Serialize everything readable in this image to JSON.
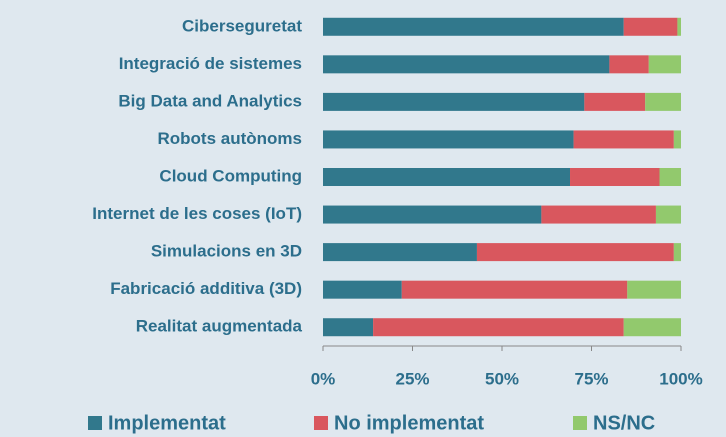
{
  "chart_data": {
    "type": "stacked-bar-horizontal",
    "categories": [
      "Ciberseguretat",
      "Integració de sistemes",
      "Big Data and Analytics",
      "Robots autònoms",
      "Cloud Computing",
      "Internet de les coses (IoT)",
      "Simulacions en 3D",
      "Fabricació additiva (3D)",
      "Realitat augmentada"
    ],
    "series": [
      {
        "name": "Implementat",
        "color": "#31788c",
        "values": [
          84,
          80,
          73,
          70,
          69,
          61,
          43,
          22,
          14
        ]
      },
      {
        "name": "No implementat",
        "color": "#d9575e",
        "values": [
          15,
          11,
          17,
          28,
          25,
          32,
          55,
          63,
          70
        ]
      },
      {
        "name": "NS/NC",
        "color": "#92c96d",
        "values": [
          1,
          9,
          10,
          2,
          6,
          7,
          2,
          15,
          16
        ]
      }
    ],
    "xlim": [
      0,
      100
    ],
    "xticks": [
      {
        "value": 0,
        "label": "0%"
      },
      {
        "value": 25,
        "label": "25%"
      },
      {
        "value": 50,
        "label": "50%"
      },
      {
        "value": 75,
        "label": "75%"
      },
      {
        "value": 100,
        "label": "100%"
      }
    ],
    "legend": "bottom"
  }
}
